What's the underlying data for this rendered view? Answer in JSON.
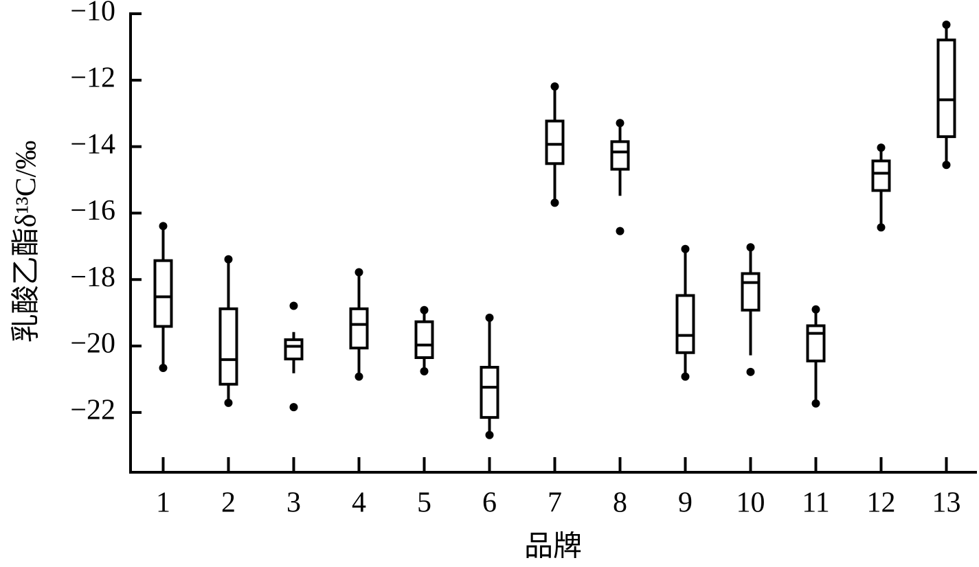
{
  "chart_data": {
    "type": "box",
    "ylabel": "乳酸乙酯δ¹³C/‰",
    "xlabel": "品牌",
    "categories": [
      "1",
      "2",
      "3",
      "4",
      "5",
      "6",
      "7",
      "8",
      "9",
      "10",
      "11",
      "12",
      "13"
    ],
    "color": "#000000",
    "ylim": [
      -23.8,
      -10
    ],
    "yticks": [
      {
        "value": -10,
        "label": "−10"
      },
      {
        "value": -12,
        "label": "−12"
      },
      {
        "value": -14,
        "label": "−14"
      },
      {
        "value": -16,
        "label": "−16"
      },
      {
        "value": -18,
        "label": "−18"
      },
      {
        "value": -20,
        "label": "−20"
      },
      {
        "value": -22,
        "label": "−22"
      }
    ],
    "boxes": [
      {
        "whislo": -20.66,
        "q1": -19.41,
        "med": -18.52,
        "q3": -17.43,
        "whishi": -16.39
      },
      {
        "whislo": -21.71,
        "q1": -21.15,
        "med": -20.41,
        "q3": -18.88,
        "whishi": -17.39
      },
      {
        "whislo": -20.82,
        "q1": -20.39,
        "med": -20.01,
        "q3": -19.81,
        "whishi": -19.58,
        "fliers": [
          -18.79,
          -21.84
        ]
      },
      {
        "whislo": -20.92,
        "q1": -20.06,
        "med": -19.35,
        "q3": -18.88,
        "whishi": -17.78
      },
      {
        "whislo": -20.76,
        "q1": -20.35,
        "med": -19.97,
        "q3": -19.27,
        "whishi": -18.92
      },
      {
        "whislo": -22.68,
        "q1": -22.15,
        "med": -21.24,
        "q3": -20.64,
        "whishi": -19.15
      },
      {
        "whislo": -15.69,
        "q1": -14.51,
        "med": -13.93,
        "q3": -13.23,
        "whishi": -12.19
      },
      {
        "whislo": -15.48,
        "q1": -14.68,
        "med": -14.16,
        "q3": -13.85,
        "whishi": -13.29,
        "fliers": [
          -16.54
        ]
      },
      {
        "whislo": -20.92,
        "q1": -20.2,
        "med": -19.68,
        "q3": -18.48,
        "whishi": -17.08
      },
      {
        "whislo": -20.28,
        "q1": -18.92,
        "med": -18.09,
        "q3": -17.82,
        "whishi": -17.03,
        "fliers": [
          -20.78
        ]
      },
      {
        "whislo": -21.73,
        "q1": -20.45,
        "med": -19.62,
        "q3": -19.39,
        "whishi": -18.9
      },
      {
        "whislo": -16.43,
        "q1": -15.32,
        "med": -14.8,
        "q3": -14.43,
        "whishi": -14.03
      },
      {
        "whislo": -14.55,
        "q1": -13.7,
        "med": -12.59,
        "q3": -10.79,
        "whishi": -10.33
      }
    ]
  }
}
